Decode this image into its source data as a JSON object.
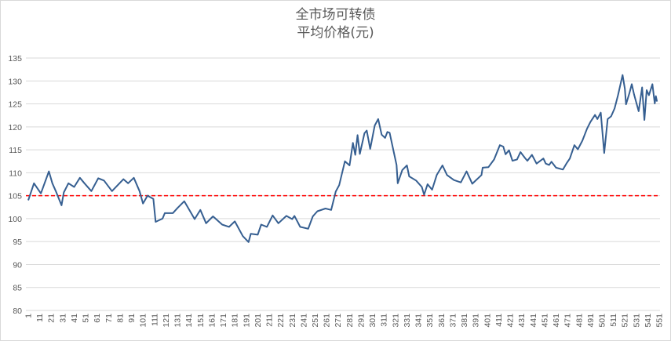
{
  "chart_data": {
    "type": "line",
    "title": "全市场可转债",
    "subtitle": "平均价格(元)",
    "xlabel": "",
    "ylabel": "",
    "ylim": [
      80,
      135
    ],
    "yticks": [
      80,
      85,
      90,
      95,
      100,
      105,
      110,
      115,
      120,
      125,
      130,
      135
    ],
    "xlim": [
      1,
      555
    ],
    "xticks_step": 10,
    "grid": "horizontal",
    "legend": "none",
    "colors": {
      "line": "#365f91",
      "reference": "#ff0000",
      "grid": "#d9d9d9"
    },
    "reference_line": {
      "y": 105,
      "style": "dashed"
    },
    "series": [
      {
        "x": [
          1,
          6,
          9,
          12,
          19,
          22,
          25,
          30,
          32,
          36,
          41,
          46,
          50,
          56,
          62,
          67,
          74,
          84,
          88,
          93,
          98,
          101,
          105,
          110,
          112,
          118,
          120,
          127,
          131,
          137,
          140,
          146,
          151,
          156,
          162,
          170,
          176,
          181,
          188,
          193,
          195,
          201,
          204,
          209,
          214,
          219,
          226,
          231,
          233,
          238,
          245,
          249,
          253,
          260,
          265,
          269,
          272,
          277,
          281,
          284,
          286,
          288,
          290,
          294,
          296,
          299,
          303,
          306,
          309,
          312,
          314,
          316,
          318,
          322,
          323,
          327,
          331,
          333,
          339,
          344,
          346,
          349,
          353,
          357,
          362,
          366,
          372,
          378,
          383,
          388,
          396,
          397,
          402,
          407,
          412,
          415,
          417,
          420,
          423,
          427,
          430,
          434,
          436,
          440,
          444,
          450,
          452,
          455,
          457,
          461,
          467,
          470,
          473,
          477,
          480,
          484,
          488,
          491,
          495,
          497,
          500,
          503,
          506,
          509,
          512,
          515,
          519,
          521,
          522,
          525,
          527,
          529,
          533,
          536,
          538,
          540,
          542,
          545,
          547,
          548,
          549
        ],
        "y": [
          104.0,
          107.7,
          106.6,
          105.5,
          110.3,
          107.7,
          106.0,
          102.9,
          105.7,
          107.7,
          106.9,
          108.9,
          107.7,
          106.0,
          108.8,
          108.3,
          106.0,
          108.6,
          107.7,
          108.9,
          106.0,
          103.3,
          105.0,
          104.3,
          99.3,
          100.0,
          101.2,
          101.2,
          102.3,
          103.8,
          102.5,
          99.9,
          101.9,
          99.0,
          100.5,
          98.7,
          98.2,
          99.4,
          96.2,
          94.9,
          96.7,
          96.5,
          98.7,
          98.2,
          100.7,
          99.0,
          100.6,
          99.9,
          100.6,
          98.2,
          97.8,
          100.5,
          101.6,
          102.2,
          101.9,
          105.9,
          107.3,
          112.5,
          111.6,
          116.5,
          113.9,
          118.2,
          114.1,
          118.6,
          119.2,
          115.2,
          120.3,
          121.7,
          118.3,
          117.6,
          118.9,
          118.7,
          116.3,
          111.7,
          107.7,
          110.6,
          111.6,
          109.2,
          108.3,
          106.9,
          105.2,
          107.5,
          106.3,
          109.5,
          111.6,
          109.5,
          108.4,
          107.9,
          110.3,
          107.6,
          109.5,
          111.1,
          111.2,
          112.9,
          116.0,
          115.7,
          114.0,
          114.9,
          112.6,
          112.9,
          114.5,
          113.2,
          112.6,
          113.9,
          112.0,
          113.1,
          112.0,
          111.7,
          112.4,
          111.1,
          110.7,
          112.0,
          113.1,
          116.0,
          115.1,
          117.0,
          119.6,
          121.1,
          122.6,
          121.7,
          123.1,
          114.3,
          121.7,
          122.3,
          124.0,
          126.9,
          131.3,
          128.3,
          124.9,
          127.4,
          129.3,
          127.1,
          123.4,
          128.6,
          121.5,
          128.0,
          126.9,
          129.3,
          125.1,
          126.7,
          125.5
        ]
      }
    ]
  }
}
